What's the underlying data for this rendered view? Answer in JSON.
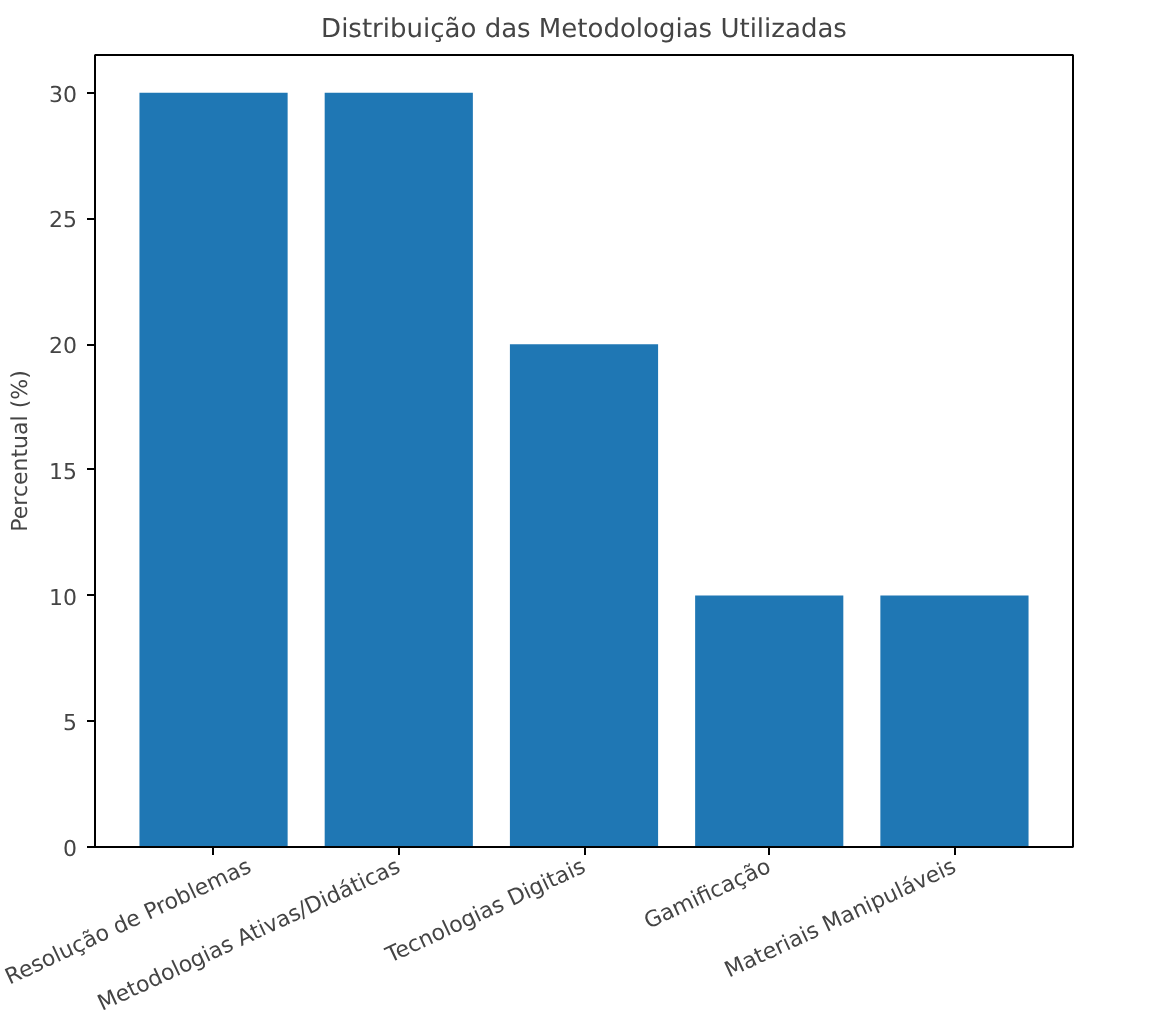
{
  "chart_data": {
    "type": "bar",
    "title": "Distribuição das Metodologias Utilizadas",
    "ylabel": "Percentual (%)",
    "categories": [
      "Resolução de Problemas",
      "Metodologias Ativas/Didáticas",
      "Tecnologias Digitais",
      "Gamificação",
      "Materiais Manipuláveis"
    ],
    "values": [
      30,
      30,
      20,
      10,
      10
    ],
    "color": "#1f77b4",
    "ylim": [
      0,
      31.5
    ],
    "yticks": [
      0,
      5,
      10,
      15,
      20,
      25,
      30
    ],
    "grid": false
  }
}
